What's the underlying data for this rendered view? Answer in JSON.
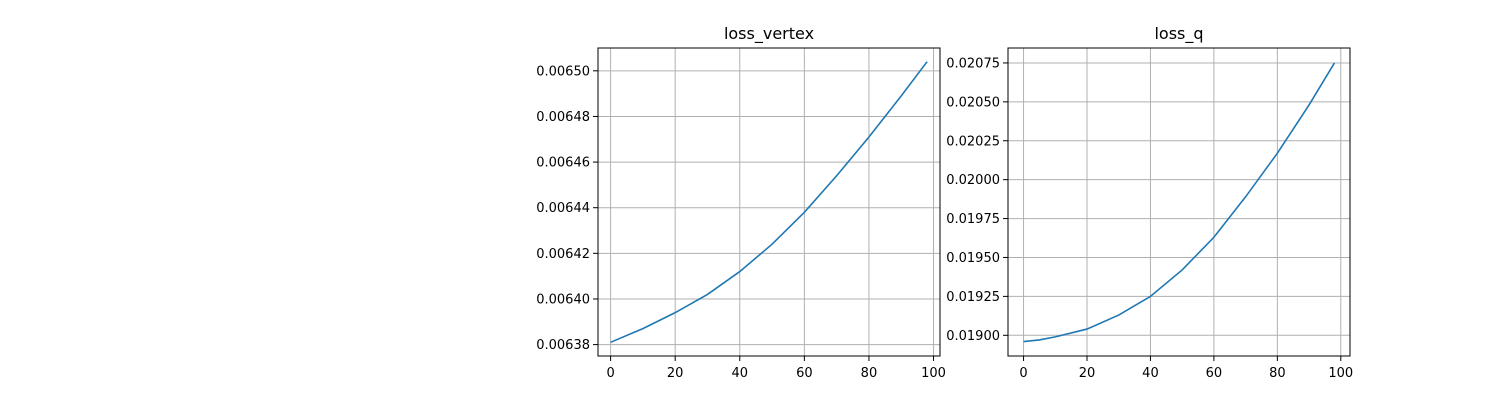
{
  "chart_data": [
    {
      "type": "line",
      "title": "loss_vertex",
      "xlabel": "",
      "ylabel": "",
      "xlim": [
        -3.9,
        102
      ],
      "ylim": [
        0.006375,
        0.00651
      ],
      "xticks": [
        0,
        20,
        40,
        60,
        80,
        100
      ],
      "xtick_labels": [
        "0",
        "20",
        "40",
        "60",
        "80",
        "100"
      ],
      "yticks": [
        0.00638,
        0.0064,
        0.00642,
        0.00644,
        0.00646,
        0.00648,
        0.0065
      ],
      "ytick_labels": [
        "0.00638",
        "0.00640",
        "0.00642",
        "0.00644",
        "0.00646",
        "0.00648",
        "0.00650"
      ],
      "grid": true,
      "color": "#1f77b4",
      "series": [
        {
          "x": [
            0,
            10,
            20,
            30,
            40,
            50,
            60,
            70,
            80,
            90,
            98
          ],
          "y": [
            0.006381,
            0.006387,
            0.006394,
            0.006402,
            0.006412,
            0.006424,
            0.006438,
            0.006454,
            0.006471,
            0.006489,
            0.006504
          ]
        }
      ]
    },
    {
      "type": "line",
      "title": "loss_q",
      "xlabel": "",
      "ylabel": "",
      "xlim": [
        -4.9,
        102.9
      ],
      "ylim": [
        0.018867,
        0.020846
      ],
      "xticks": [
        0,
        20,
        40,
        60,
        80,
        100
      ],
      "xtick_labels": [
        "0",
        "20",
        "40",
        "60",
        "80",
        "100"
      ],
      "yticks": [
        0.019,
        0.01925,
        0.0195,
        0.01975,
        0.02,
        0.02025,
        0.0205,
        0.02075
      ],
      "ytick_labels": [
        "0.01900",
        "0.01925",
        "0.01950",
        "0.01975",
        "0.02000",
        "0.02025",
        "0.02050",
        "0.02075"
      ],
      "grid": true,
      "color": "#1f77b4",
      "series": [
        {
          "x": [
            0,
            5,
            10,
            20,
            30,
            40,
            50,
            60,
            70,
            80,
            90,
            98
          ],
          "y": [
            0.01896,
            0.01897,
            0.01899,
            0.01904,
            0.01913,
            0.01925,
            0.01942,
            0.01963,
            0.01989,
            0.02017,
            0.02048,
            0.02075
          ]
        }
      ]
    }
  ]
}
